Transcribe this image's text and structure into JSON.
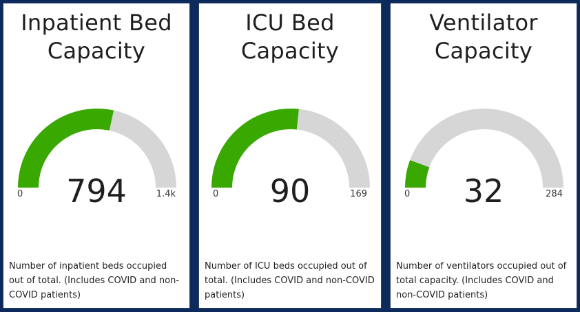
{
  "colors": {
    "background": "#0d2a5c",
    "gauge_fill": "#39a800",
    "gauge_track": "#d6d6d6"
  },
  "cards": [
    {
      "title_line1": "Inpatient Bed",
      "title_line2": "Capacity",
      "value": "794",
      "min": "0",
      "max": "1.4k",
      "fraction": 0.567,
      "description": "Number of inpatient beds occupied out of total. (Includes COVID and non-COVID patients)"
    },
    {
      "title_line1": "ICU Bed",
      "title_line2": "Capacity",
      "value": "90",
      "min": "0",
      "max": "169",
      "fraction": 0.533,
      "description": "Number of ICU beds occupied out of total. (Includes COVID and non-COVID patients)"
    },
    {
      "title_line1": "Ventilator",
      "title_line2": "Capacity",
      "value": "32",
      "min": "0",
      "max": "284",
      "fraction": 0.113,
      "description": "Number of ventilators occupied out of total capacity. (Includes COVID and non-COVID patients)"
    }
  ]
}
